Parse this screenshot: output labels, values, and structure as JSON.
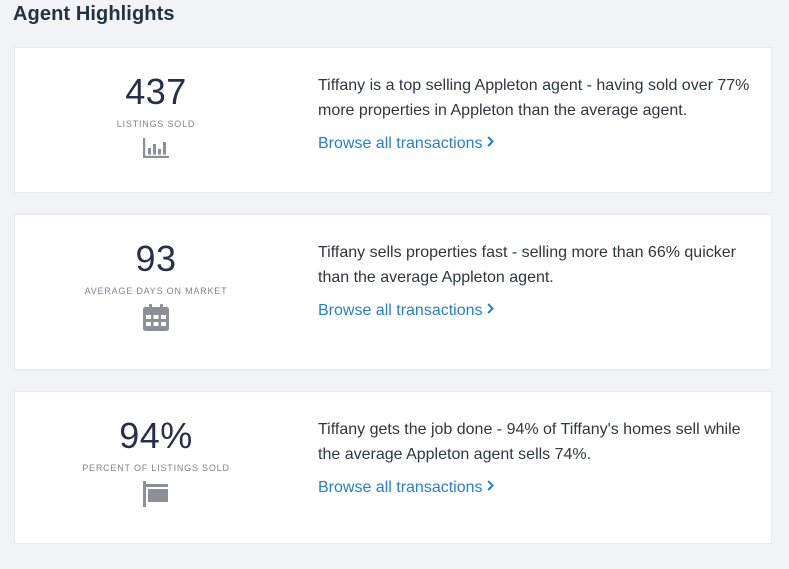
{
  "header": {
    "title": "Agent Highlights"
  },
  "highlights": [
    {
      "value": "437",
      "label": "LISTINGS SOLD",
      "icon": "bar-chart-icon",
      "description": "Tiffany is a top selling Appleton agent - having sold over 77% more properties in Appleton than the average agent.",
      "link": "Browse all transactions"
    },
    {
      "value": "93",
      "label": "AVERAGE DAYS ON MARKET",
      "icon": "calendar-icon",
      "description": "Tiffany sells properties fast - selling more than 66% quicker than the average Appleton agent.",
      "link": "Browse all transactions"
    },
    {
      "value": "94%",
      "label": "PERCENT OF LISTINGS SOLD",
      "icon": "sign-post-icon",
      "description": "Tiffany gets the job done - 94% of Tiffany's homes sell while the average Appleton agent sells 74%.",
      "link": "Browse all transactions"
    }
  ],
  "colors": {
    "background": "#f1f3f6",
    "card": "#ffffff",
    "link": "#2a7fc4",
    "icon": "#8a8f98",
    "value": "#25304a"
  }
}
